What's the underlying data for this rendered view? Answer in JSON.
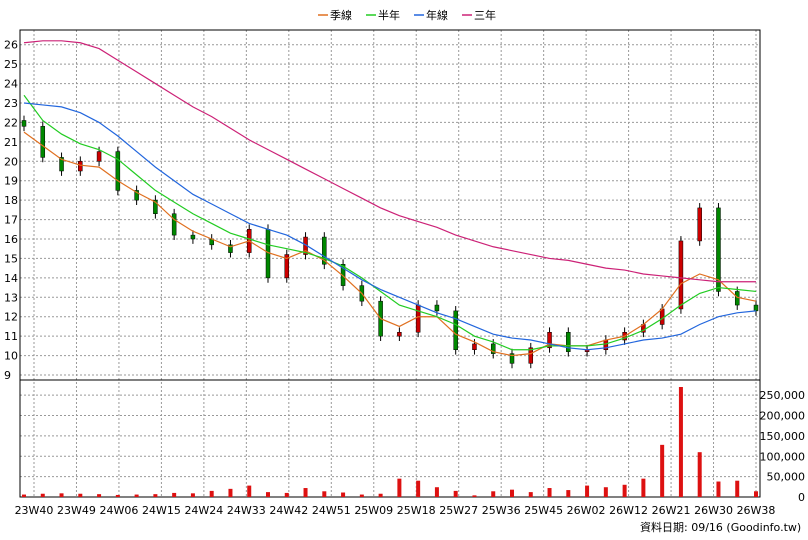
{
  "chart_data": {
    "type": "line",
    "legend": {
      "placement": "top-center",
      "items": [
        {
          "label": "季線",
          "color": "#e07020"
        },
        {
          "label": "半年",
          "color": "#22cc22"
        },
        {
          "label": "年線",
          "color": "#2266dd"
        },
        {
          "label": "三年",
          "color": "#cc2277"
        }
      ]
    },
    "x_tick_labels": [
      "23W40",
      "23W49",
      "24W06",
      "24W15",
      "24W24",
      "24W33",
      "24W42",
      "24W51",
      "25W09",
      "25W18",
      "25W27",
      "25W36",
      "25W45",
      "26W02",
      "26W12",
      "26W21",
      "26W30",
      "26W38"
    ],
    "price_axis": {
      "ylim": [
        9,
        26.5
      ],
      "ticks": [
        "9",
        "10",
        "11",
        "12",
        "13",
        "14",
        "15",
        "16",
        "17",
        "18",
        "19",
        "20",
        "21",
        "22",
        "23",
        "24",
        "25",
        "26"
      ]
    },
    "volume_axis": {
      "ylim": [
        0,
        270000
      ],
      "ticks": [
        "0",
        "50,000",
        "100,000",
        "150,000",
        "200,000",
        "250,000"
      ]
    },
    "colors": {
      "up": "#cc0000",
      "down": "#008800",
      "volume": "#dd1111",
      "grid": "#999999"
    },
    "price_series": {
      "x": [
        0,
        4,
        8,
        12,
        16,
        20,
        24,
        28,
        32,
        36,
        40,
        44,
        48,
        52,
        56,
        60,
        64,
        68,
        72,
        76,
        80,
        84,
        88,
        92,
        96,
        100,
        104,
        108,
        112,
        116,
        120,
        124,
        128,
        132,
        136,
        140,
        144,
        148,
        152,
        156
      ],
      "close": [
        21.8,
        20.2,
        19.5,
        20,
        20.5,
        18.5,
        18,
        17.3,
        16.2,
        16,
        15.7,
        15.3,
        16.5,
        14,
        15.2,
        16.1,
        14.7,
        13.6,
        12.8,
        11,
        11.2,
        12.6,
        12.3,
        10.3,
        10.6,
        10.1,
        9.6,
        10.4,
        11.2,
        10.2,
        10.3,
        10.8,
        11.2,
        11.6,
        12.4,
        15.9,
        17.6,
        13.3,
        12.6,
        12.3
      ]
    },
    "series": [
      {
        "name": "季線",
        "values": [
          21.5,
          20.8,
          20.1,
          19.8,
          19.7,
          19.0,
          18.4,
          17.9,
          17.0,
          16.4,
          16.0,
          15.6,
          15.9,
          15.3,
          15.0,
          15.4,
          14.9,
          14.1,
          13.2,
          11.9,
          11.5,
          12.0,
          12.0,
          11.1,
          10.7,
          10.2,
          10.0,
          10.1,
          10.6,
          10.5,
          10.5,
          10.8,
          11.0,
          11.6,
          12.4,
          13.7,
          14.2,
          13.9,
          13.0,
          12.8
        ]
      },
      {
        "name": "半年",
        "values": [
          23.4,
          22.1,
          21.4,
          20.9,
          20.6,
          20.1,
          19.3,
          18.5,
          17.9,
          17.3,
          16.8,
          16.3,
          16.0,
          15.7,
          15.5,
          15.3,
          15.0,
          14.6,
          14.0,
          13.3,
          12.6,
          12.3,
          12.0,
          11.6,
          11.0,
          10.7,
          10.3,
          10.3,
          10.5,
          10.5,
          10.5,
          10.6,
          10.9,
          11.3,
          11.9,
          12.6,
          13.2,
          13.5,
          13.4,
          13.3
        ]
      },
      {
        "name": "年線",
        "values": [
          23.0,
          22.9,
          22.8,
          22.5,
          22.0,
          21.3,
          20.5,
          19.7,
          19.0,
          18.3,
          17.8,
          17.3,
          16.8,
          16.5,
          16.2,
          15.7,
          15.1,
          14.5,
          13.9,
          13.4,
          13.0,
          12.6,
          12.2,
          11.9,
          11.5,
          11.1,
          10.9,
          10.8,
          10.6,
          10.4,
          10.3,
          10.4,
          10.6,
          10.8,
          10.9,
          11.1,
          11.6,
          12.0,
          12.2,
          12.3
        ]
      },
      {
        "name": "三年",
        "values": [
          26.1,
          26.2,
          26.2,
          26.1,
          25.8,
          25.2,
          24.6,
          24.0,
          23.4,
          22.8,
          22.3,
          21.7,
          21.1,
          20.6,
          20.1,
          19.6,
          19.1,
          18.6,
          18.1,
          17.6,
          17.2,
          16.9,
          16.6,
          16.2,
          15.9,
          15.6,
          15.4,
          15.2,
          15.0,
          14.9,
          14.7,
          14.5,
          14.4,
          14.2,
          14.1,
          14.0,
          13.9,
          13.8,
          13.8,
          13.8
        ]
      }
    ],
    "volume_series": {
      "x": [
        0,
        4,
        8,
        12,
        16,
        20,
        24,
        28,
        32,
        36,
        40,
        44,
        48,
        52,
        56,
        60,
        64,
        68,
        72,
        76,
        80,
        84,
        88,
        92,
        96,
        100,
        104,
        108,
        112,
        116,
        120,
        124,
        128,
        132,
        136,
        140,
        144,
        148,
        152,
        156
      ],
      "values": [
        6000,
        8000,
        9000,
        8000,
        7000,
        5000,
        6000,
        7000,
        10000,
        9000,
        15000,
        20000,
        28000,
        12000,
        10000,
        22000,
        14000,
        11000,
        6000,
        8000,
        45000,
        40000,
        24000,
        15000,
        4000,
        14000,
        18000,
        12000,
        22000,
        17000,
        28000,
        24000,
        30000,
        45000,
        128000,
        270000,
        110000,
        38000,
        40000,
        14000
      ]
    }
  },
  "source_note": "資料日期: 09/16  (Goodinfo.tw)"
}
